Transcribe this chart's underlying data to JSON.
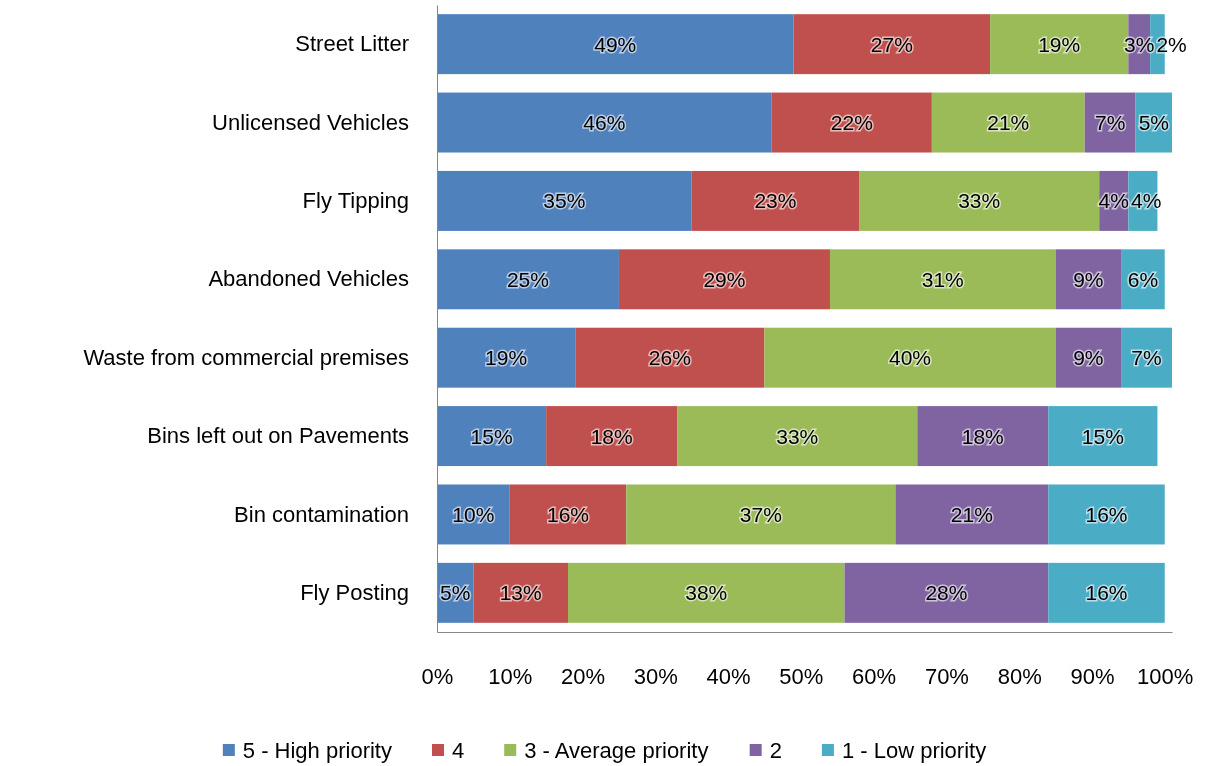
{
  "chart_data": {
    "type": "bar",
    "orientation": "horizontal",
    "stacked": true,
    "categories": [
      "Street Litter",
      "Unlicensed Vehicles",
      "Fly Tipping",
      "Abandoned Vehicles",
      "Waste from commercial premises",
      "Bins left out on Pavements",
      "Bin contamination",
      "Fly Posting"
    ],
    "series": [
      {
        "name": "5 - High priority",
        "color": "#4f81bd",
        "values": [
          49,
          46,
          35,
          25,
          19,
          15,
          10,
          5
        ],
        "value_labels": [
          "49%",
          "46%",
          "35%",
          "25%",
          "19%",
          "15%",
          "10%",
          "5%"
        ]
      },
      {
        "name": "4",
        "color": "#c0504d",
        "values": [
          27,
          22,
          23,
          29,
          26,
          18,
          16,
          13
        ],
        "value_labels": [
          "27%",
          "22%",
          "23%",
          "29%",
          "26%",
          "18%",
          "16%",
          "13%"
        ]
      },
      {
        "name": "3 - Average priority",
        "color": "#9bbb59",
        "values": [
          19,
          21,
          33,
          31,
          40,
          33,
          37,
          38
        ],
        "value_labels": [
          "19%",
          "21%",
          "33%",
          "31%",
          "40%",
          "33%",
          "37%",
          "38%"
        ]
      },
      {
        "name": "2",
        "color": "#8064a2",
        "values": [
          3,
          7,
          4,
          9,
          9,
          18,
          21,
          28
        ],
        "value_labels": [
          "3%",
          "7%",
          "4%",
          "9%",
          "9%",
          "18%",
          "21%",
          "28%"
        ]
      },
      {
        "name": "1 - Low priority",
        "color": "#4bacc6",
        "values": [
          2,
          5,
          4,
          6,
          7,
          15,
          16,
          16
        ],
        "value_labels": [
          "2%",
          "5%",
          "4%",
          "6%",
          "7%",
          "15%",
          "16%",
          "16%"
        ]
      }
    ],
    "xlim": [
      0,
      101
    ],
    "xticks": [
      {
        "value": 0,
        "label": "0%"
      },
      {
        "value": 10,
        "label": "10%"
      },
      {
        "value": 20,
        "label": "20%"
      },
      {
        "value": 30,
        "label": "30%"
      },
      {
        "value": 40,
        "label": "40%"
      },
      {
        "value": 50,
        "label": "50%"
      },
      {
        "value": 60,
        "label": "60%"
      },
      {
        "value": 70,
        "label": "70%"
      },
      {
        "value": 80,
        "label": "80%"
      },
      {
        "value": 90,
        "label": "90%"
      },
      {
        "value": 100,
        "label": "100%"
      }
    ],
    "legend": "bottom",
    "grid": false
  }
}
